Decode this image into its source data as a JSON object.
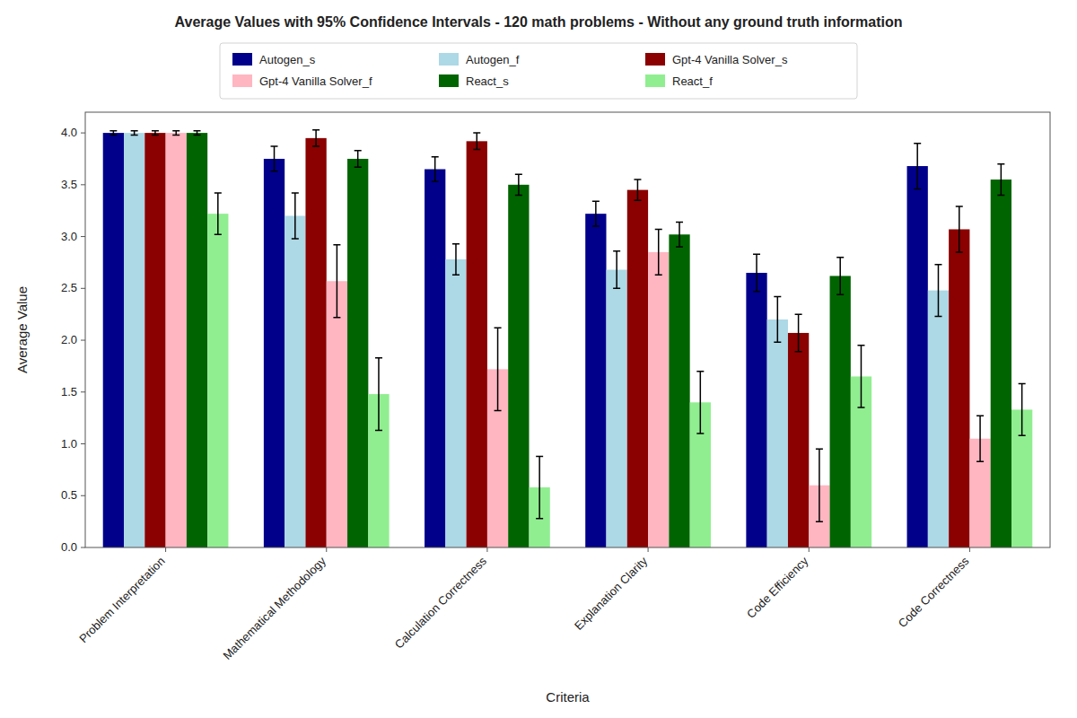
{
  "chart_data": {
    "type": "bar",
    "title": "Average Values with 95% Confidence Intervals - 120 math problems - Without any ground truth information",
    "x_label": "Criteria",
    "y_label": "Average Value",
    "categories": [
      "Problem Interpretation",
      "Mathematical Methodology",
      "Calculation Correctness",
      "Explanation Clarity",
      "Code Efficiency",
      "Code Correctness"
    ],
    "series": [
      {
        "name": "Autogen_s",
        "color": "#00008B",
        "values": [
          4.0,
          3.75,
          3.65,
          3.22,
          2.65,
          3.68
        ],
        "errors": [
          0.02,
          0.12,
          0.12,
          0.12,
          0.18,
          0.22
        ]
      },
      {
        "name": "Autogen_f",
        "color": "#ADD8E6",
        "values": [
          4.0,
          3.2,
          2.78,
          2.68,
          2.2,
          2.48
        ],
        "errors": [
          0.02,
          0.22,
          0.15,
          0.18,
          0.22,
          0.25
        ]
      },
      {
        "name": "Gpt-4 Vanilla Solver_s",
        "color": "#8B0000",
        "values": [
          4.0,
          3.95,
          3.92,
          3.45,
          2.07,
          3.07
        ],
        "errors": [
          0.02,
          0.08,
          0.08,
          0.1,
          0.18,
          0.22
        ]
      },
      {
        "name": "Gpt-4 Vanilla Solver_f",
        "color": "#FFB6C1",
        "values": [
          4.0,
          2.57,
          1.72,
          2.85,
          0.6,
          1.05
        ],
        "errors": [
          0.02,
          0.35,
          0.4,
          0.22,
          0.35,
          0.22
        ]
      },
      {
        "name": "React_s",
        "color": "#006400",
        "values": [
          4.0,
          3.75,
          3.5,
          3.02,
          2.62,
          3.55
        ],
        "errors": [
          0.02,
          0.08,
          0.1,
          0.12,
          0.18,
          0.15
        ]
      },
      {
        "name": "React_f",
        "color": "#90EE90",
        "values": [
          3.22,
          1.48,
          0.58,
          1.4,
          1.65,
          1.33
        ],
        "errors": [
          0.2,
          0.35,
          0.3,
          0.3,
          0.3,
          0.25
        ]
      }
    ],
    "ylim": [
      0.0,
      4.2
    ],
    "yticks": [
      {
        "value": 0.0,
        "label": "0.0"
      },
      0.5,
      {
        "value": 1.0,
        "label": "1.0"
      },
      1.5,
      {
        "value": 2.0,
        "label": "2.0"
      },
      2.5,
      {
        "value": 3.0,
        "label": "3.0"
      },
      3.5,
      {
        "value": 4.0,
        "label": "4.0"
      }
    ],
    "grid": false,
    "legend": "top"
  }
}
